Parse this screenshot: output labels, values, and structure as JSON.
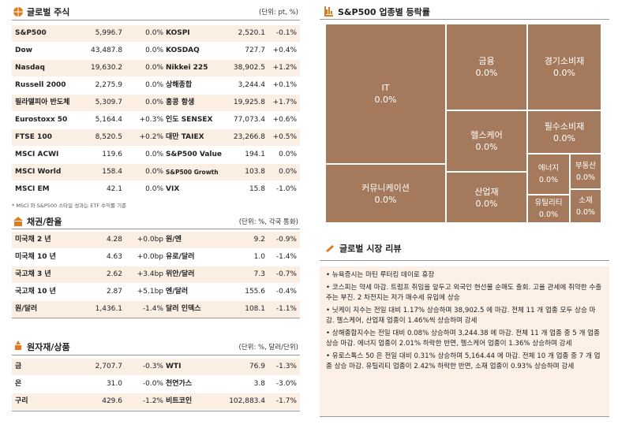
{
  "stocks": {
    "title": "글로벌 주식",
    "unit": "(단위: pt, %)",
    "rows": [
      [
        "S&P500",
        "5,996.7",
        "0.0%",
        "KOSPI",
        "2,520.1",
        "-0.1%"
      ],
      [
        "Dow",
        "43,487.8",
        "0.0%",
        "KOSDAQ",
        "727.7",
        "+0.4%"
      ],
      [
        "Nasdaq",
        "19,630.2",
        "0.0%",
        "Nikkei 225",
        "38,902.5",
        "+1.2%"
      ],
      [
        "Russell 2000",
        "2,275.9",
        "0.0%",
        "상해종합",
        "3,244.4",
        "+0.1%"
      ],
      [
        "필라델피아 반도체",
        "5,309.7",
        "0.0%",
        "홍콩 항생",
        "19,925.8",
        "+1.7%"
      ],
      [
        "Eurostoxx 50",
        "5,164.4",
        "+0.3%",
        "인도 SENSEX",
        "77,073.4",
        "+0.6%"
      ],
      [
        "FTSE 100",
        "8,520.5",
        "+0.2%",
        "대만 TAIEX",
        "23,266.8",
        "+0.5%"
      ],
      [
        "MSCI ACWI",
        "119.6",
        "0.0%",
        "S&P500 Value",
        "194.1",
        "0.0%"
      ],
      [
        "MSCI World",
        "158.4",
        "0.0%",
        "S&P500 Growth",
        "103.8",
        "0.0%"
      ],
      [
        "MSCI EM",
        "42.1",
        "0.0%",
        "VIX",
        "15.8",
        "-1.0%"
      ]
    ],
    "note": "* MSCI 와 S&P500 스타일 성과는 ETF 수익률 기준"
  },
  "bonds": {
    "title": "채권/환율",
    "unit": "(단위: %, 각국 통화)",
    "rows": [
      [
        "미국채 2 년",
        "4.28",
        "+0.0bp",
        "원/엔",
        "9.2",
        "-0.9%"
      ],
      [
        "미국채 10 년",
        "4.63",
        "+0.0bp",
        "유로/달러",
        "1.0",
        "-1.4%"
      ],
      [
        "국고채 3 년",
        "2.62",
        "+3.4bp",
        "위안/달러",
        "7.3",
        "-0.7%"
      ],
      [
        "국고채 10 년",
        "2.87",
        "+5.1bp",
        "엔/달러",
        "155.6",
        "-0.4%"
      ],
      [
        "원/달러",
        "1,436.1",
        "-1.4%",
        "달러 인덱스",
        "108.1",
        "-1.1%"
      ]
    ]
  },
  "commodities": {
    "title": "원자재/상품",
    "unit": "(단위: %, 달러/단위)",
    "rows": [
      [
        "금",
        "2,707.7",
        "-0.3%",
        "WTI",
        "76.9",
        "-1.3%"
      ],
      [
        "은",
        "31.0",
        "-0.0%",
        "천연가스",
        "3.8",
        "-3.0%"
      ],
      [
        "구리",
        "429.6",
        "-1.2%",
        "비트코인",
        "102,883.4",
        "-1.7%"
      ]
    ]
  },
  "sectors": {
    "title": "S&P500 업종별 등락률",
    "tiles": [
      {
        "name": "IT",
        "change": "0.0%"
      },
      {
        "name": "금융",
        "change": "0.0%"
      },
      {
        "name": "경기소비재",
        "change": "0.0%"
      },
      {
        "name": "헬스케어",
        "change": "0.0%"
      },
      {
        "name": "필수소비재",
        "change": "0.0%"
      },
      {
        "name": "커뮤니케이션",
        "change": "0.0%"
      },
      {
        "name": "산업재",
        "change": "0.0%"
      },
      {
        "name": "에너지",
        "change": "0.0%"
      },
      {
        "name": "부동산",
        "change": "0.0%"
      },
      {
        "name": "유틸리티",
        "change": "0.0%"
      },
      {
        "name": "소재",
        "change": "0.0%"
      }
    ]
  },
  "review": {
    "title": "글로벌 시장 리뷰",
    "items": [
      "• 뉴욕증시는 마틴 루터킹 데이로 휴장",
      "• 코스피는 약세 마감. 트럼프 취임을 앞두고 외국인 현선물 순매도 출회. 고율 관세에 취약한 수출주는 부진. 2 차전지는 저가 매수세 유입에 상승",
      "• 닛케이 지수는 전일 대비 1.17% 상승하며 38,902.5 에 마감. 전체 11 개 업종 모두 상승 마감. 헬스케어, 산업재 업종이 1.46%씩 상승하며 강세",
      "• 상해종합지수는 전일 대비 0.08% 상승하며 3,244.38 에 마감. 전체 11 개 업종 중 5 개 업종 상승 마감. 에너지 업종이 2.01% 하락한 반면, 헬스케어 업종이 1.36% 상승하며 강세",
      "• 유로스톡스 50 은 전일 대비 0.31% 상승하며 5,164.44 에 마감. 전체 10 개 업종 중 7 개 업종 상승 마감. 유틸리티 업종이 2.42% 하락한 반면, 소재 업종이 0.93% 상승하며 강세"
    ]
  }
}
